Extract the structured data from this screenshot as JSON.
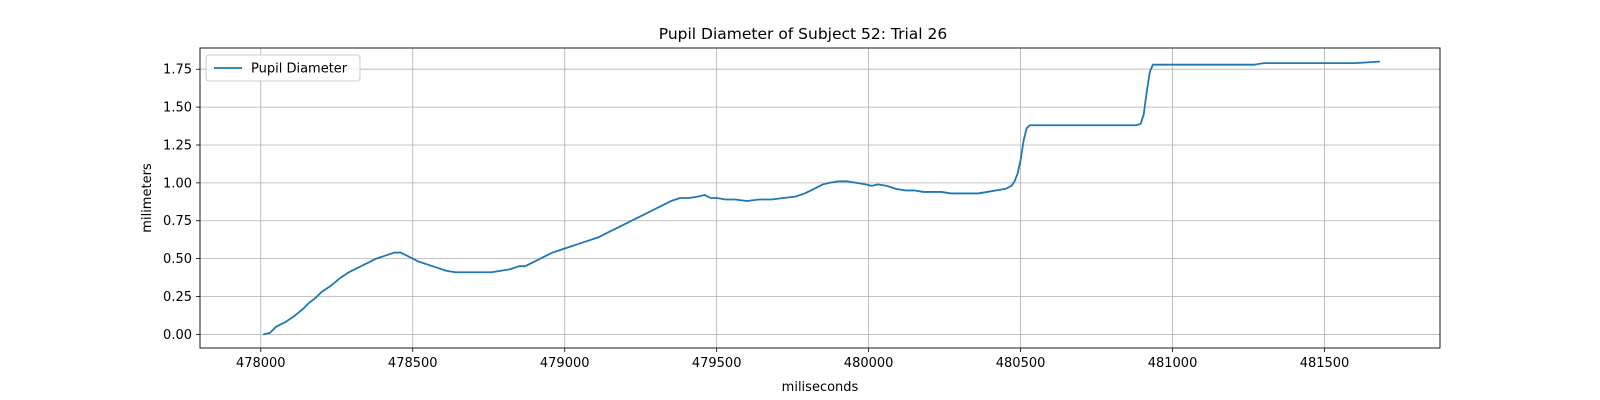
{
  "chart_data": {
    "type": "line",
    "title": "Pupil Diameter of Subject 52: Trial 26",
    "xlabel": "miliseconds",
    "ylabel": "milimeters",
    "xlim": [
      477800,
      481880
    ],
    "ylim": [
      -0.09,
      1.89
    ],
    "xticks": [
      478000,
      478500,
      479000,
      479500,
      480000,
      480500,
      481000,
      481500
    ],
    "yticks": [
      0.0,
      0.25,
      0.5,
      0.75,
      1.0,
      1.25,
      1.5,
      1.75
    ],
    "ytick_labels": [
      "0.00",
      "0.25",
      "0.50",
      "0.75",
      "1.00",
      "1.25",
      "1.50",
      "1.75"
    ],
    "grid": true,
    "legend_position": "top-left",
    "series": [
      {
        "name": "Pupil Diameter",
        "color": "#1f77b4",
        "x": [
          478010,
          478030,
          478050,
          478080,
          478110,
          478140,
          478160,
          478180,
          478200,
          478230,
          478260,
          478290,
          478320,
          478350,
          478380,
          478410,
          478440,
          478460,
          478490,
          478520,
          478550,
          478580,
          478610,
          478640,
          478670,
          478700,
          478730,
          478760,
          478790,
          478820,
          478850,
          478870,
          478900,
          478930,
          478960,
          478990,
          479020,
          479050,
          479080,
          479110,
          479140,
          479170,
          479200,
          479230,
          479260,
          479290,
          479320,
          479350,
          479380,
          479410,
          479440,
          479460,
          479480,
          479500,
          479530,
          479560,
          479600,
          479640,
          479680,
          479720,
          479760,
          479790,
          479820,
          479850,
          479870,
          479900,
          479930,
          479960,
          479990,
          480010,
          480030,
          480060,
          480090,
          480120,
          480150,
          480180,
          480210,
          480240,
          480270,
          480300,
          480330,
          480360,
          480390,
          480420,
          480450,
          480470,
          480480,
          480490,
          480500,
          480510,
          480520,
          480530,
          480550,
          480600,
          480700,
          480800,
          480880,
          480895,
          480905,
          480915,
          480925,
          480935,
          480950,
          481000,
          481100,
          481200,
          481270,
          481300,
          481400,
          481500,
          481600,
          481680
        ],
        "y": [
          0.0,
          0.01,
          0.05,
          0.08,
          0.12,
          0.17,
          0.21,
          0.24,
          0.28,
          0.32,
          0.37,
          0.41,
          0.44,
          0.47,
          0.5,
          0.52,
          0.54,
          0.54,
          0.51,
          0.48,
          0.46,
          0.44,
          0.42,
          0.41,
          0.41,
          0.41,
          0.41,
          0.41,
          0.42,
          0.43,
          0.45,
          0.45,
          0.48,
          0.51,
          0.54,
          0.56,
          0.58,
          0.6,
          0.62,
          0.64,
          0.67,
          0.7,
          0.73,
          0.76,
          0.79,
          0.82,
          0.85,
          0.88,
          0.9,
          0.9,
          0.91,
          0.92,
          0.9,
          0.9,
          0.89,
          0.89,
          0.88,
          0.89,
          0.89,
          0.9,
          0.91,
          0.93,
          0.96,
          0.99,
          1.0,
          1.01,
          1.01,
          1.0,
          0.99,
          0.98,
          0.99,
          0.98,
          0.96,
          0.95,
          0.95,
          0.94,
          0.94,
          0.94,
          0.93,
          0.93,
          0.93,
          0.93,
          0.94,
          0.95,
          0.96,
          0.98,
          1.01,
          1.06,
          1.15,
          1.28,
          1.36,
          1.38,
          1.38,
          1.38,
          1.38,
          1.38,
          1.38,
          1.39,
          1.45,
          1.6,
          1.73,
          1.78,
          1.78,
          1.78,
          1.78,
          1.78,
          1.78,
          1.79,
          1.79,
          1.79,
          1.79,
          1.8
        ]
      }
    ]
  }
}
